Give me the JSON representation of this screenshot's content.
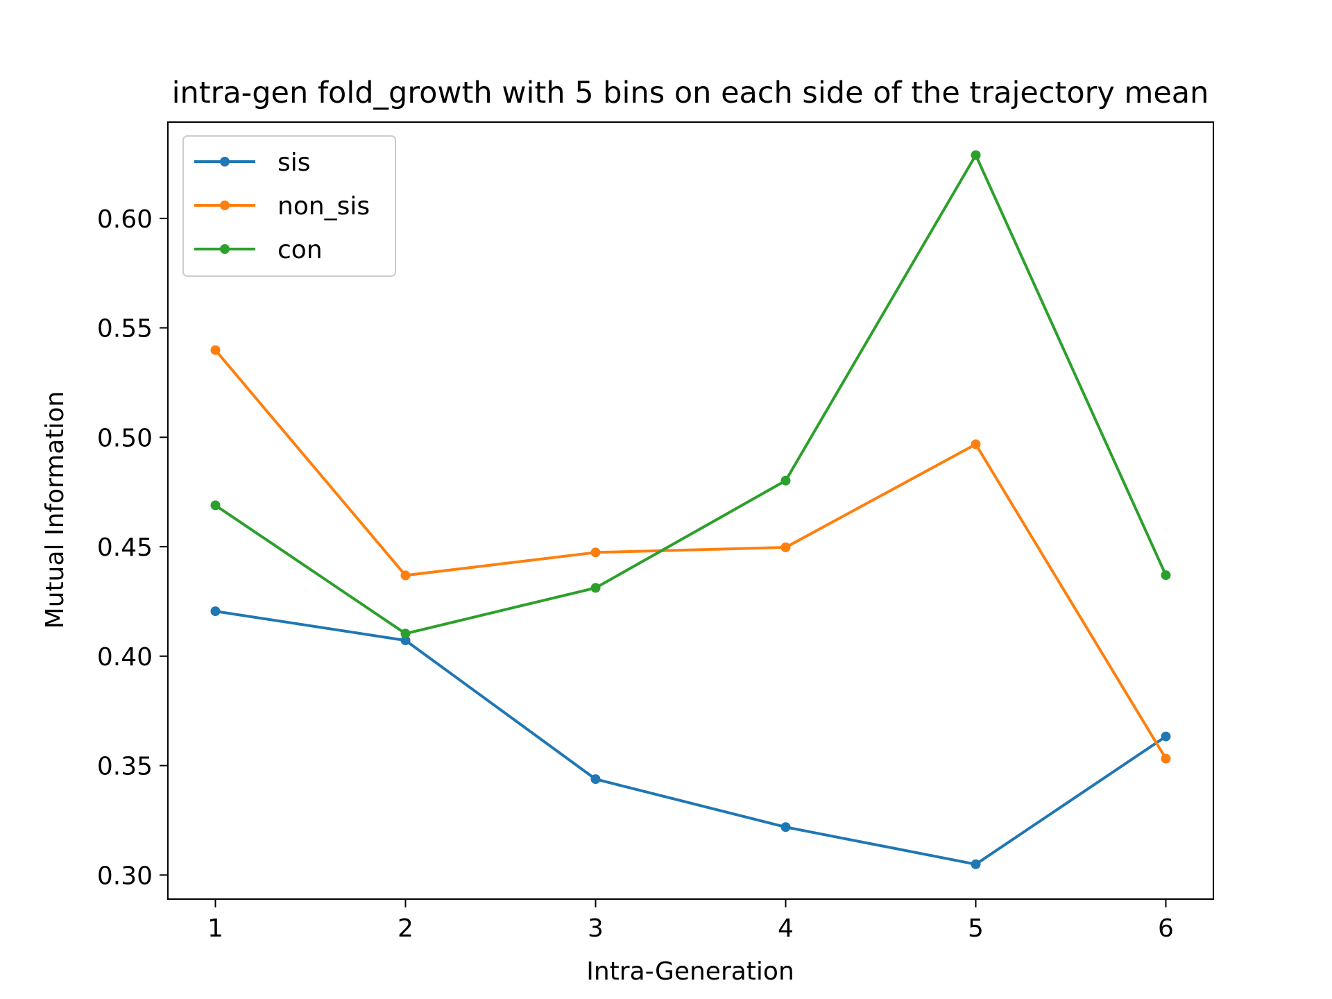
{
  "chart_data": {
    "type": "line",
    "title": "intra-gen fold_growth with 5 bins on each side of the trajectory mean",
    "xlabel": "Intra-Generation",
    "ylabel": "Mutual Information",
    "x": [
      1,
      2,
      3,
      4,
      5,
      6
    ],
    "xticks": [
      "1",
      "2",
      "3",
      "4",
      "5",
      "6"
    ],
    "yticks": [
      "0.30",
      "0.35",
      "0.40",
      "0.45",
      "0.50",
      "0.55",
      "0.60"
    ],
    "xlim": [
      0.75,
      6.25
    ],
    "ylim": [
      0.289,
      0.644
    ],
    "grid": false,
    "legend_position": "upper left",
    "series": [
      {
        "name": "sis",
        "color": "#1f77b4",
        "values": [
          0.4205,
          0.4072,
          0.3438,
          0.3219,
          0.3049,
          0.3633
        ]
      },
      {
        "name": "non_sis",
        "color": "#ff7f0e",
        "values": [
          0.5398,
          0.4369,
          0.4474,
          0.4497,
          0.4968,
          0.3532
        ]
      },
      {
        "name": "con",
        "color": "#2ca02c",
        "values": [
          0.4689,
          0.4103,
          0.4312,
          0.4802,
          0.6289,
          0.437
        ]
      }
    ]
  }
}
